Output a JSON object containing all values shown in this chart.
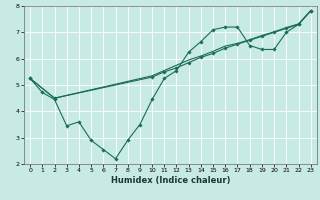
{
  "xlabel": "Humidex (Indice chaleur)",
  "background_color": "#c8eae4",
  "grid_color": "#ffffff",
  "line_color": "#1a6b5a",
  "xlim": [
    -0.5,
    23.5
  ],
  "ylim": [
    2,
    8
  ],
  "xticks": [
    0,
    1,
    2,
    3,
    4,
    5,
    6,
    7,
    8,
    9,
    10,
    11,
    12,
    13,
    14,
    15,
    16,
    17,
    18,
    19,
    20,
    21,
    22,
    23
  ],
  "yticks": [
    2,
    3,
    4,
    5,
    6,
    7,
    8
  ],
  "line1_x": [
    0,
    1,
    2,
    3,
    4,
    5,
    6,
    7,
    8,
    9,
    10,
    11,
    12,
    13,
    14,
    15,
    16,
    17,
    18,
    19,
    20,
    21,
    22,
    23
  ],
  "line1_y": [
    5.25,
    4.72,
    4.45,
    3.45,
    3.6,
    2.9,
    2.55,
    2.2,
    2.9,
    3.5,
    4.45,
    5.25,
    5.55,
    6.25,
    6.65,
    7.1,
    7.2,
    7.2,
    6.5,
    6.35,
    6.35,
    7.0,
    7.3,
    7.82
  ],
  "line2_x": [
    0,
    2,
    10,
    11,
    12,
    13,
    14,
    15,
    16,
    17,
    18,
    19,
    20,
    21,
    22,
    23
  ],
  "line2_y": [
    5.25,
    4.5,
    5.3,
    5.5,
    5.65,
    5.85,
    6.05,
    6.2,
    6.4,
    6.55,
    6.7,
    6.85,
    7.0,
    7.15,
    7.3,
    7.82
  ],
  "line3_x": [
    0,
    2,
    10,
    11,
    12,
    13,
    14,
    15,
    16,
    17,
    18,
    19,
    20,
    21,
    22,
    23
  ],
  "line3_y": [
    5.25,
    4.5,
    5.35,
    5.55,
    5.75,
    5.95,
    6.1,
    6.28,
    6.48,
    6.58,
    6.72,
    6.88,
    7.02,
    7.18,
    7.32,
    7.82
  ]
}
